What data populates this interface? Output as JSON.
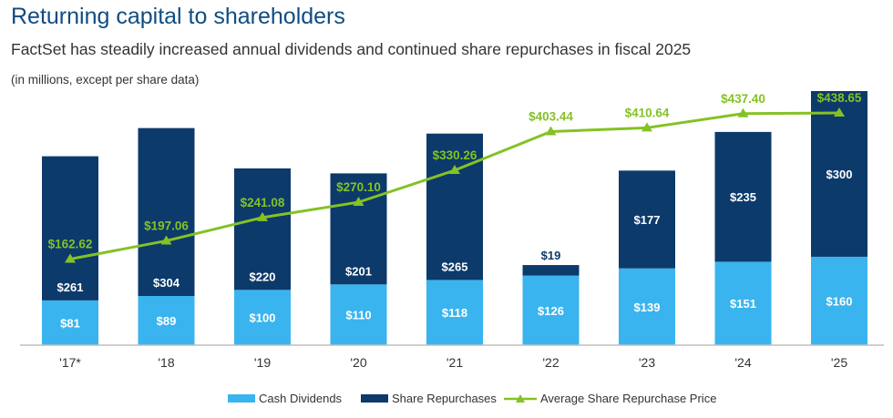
{
  "header": {
    "title": "Returning capital to shareholders",
    "subtitle": "FactSet has steadily increased annual dividends and continued share repurchases in fiscal 2025",
    "note": "(in millions, except per share data)"
  },
  "colors": {
    "dividends": "#3ab4ee",
    "repurchases": "#0c3a6b",
    "price_line": "#84c225",
    "axis": "#bfbfbf"
  },
  "chart_data": {
    "type": "bar",
    "stacked": true,
    "title": "Returning capital to shareholders",
    "categories": [
      "'17*",
      "'18",
      "'19",
      "'20",
      "'21",
      "'22",
      "'23",
      "'24",
      "'25"
    ],
    "series": [
      {
        "name": "Cash Dividends",
        "values": [
          81,
          89,
          100,
          110,
          118,
          126,
          139,
          151,
          160
        ],
        "labels": [
          "$81",
          "$89",
          "$100",
          "$110",
          "$118",
          "$126",
          "$139",
          "$151",
          "$160"
        ]
      },
      {
        "name": "Share Repurchases",
        "values": [
          261,
          304,
          220,
          201,
          265,
          19,
          177,
          235,
          300
        ],
        "labels": [
          "$261",
          "$304",
          "$220",
          "$201",
          "$265",
          "$19",
          "$177",
          "$235",
          "$300"
        ]
      }
    ],
    "line": {
      "name": "Average Share Repurchase Price",
      "values": [
        162.62,
        197.06,
        241.08,
        270.1,
        330.26,
        403.44,
        410.64,
        437.4,
        438.65
      ],
      "labels": [
        "$162.62",
        "$197.06",
        "$241.08",
        "$270.10",
        "$330.26",
        "$403.44",
        "$410.64",
        "$437.40",
        "$438.65"
      ],
      "ylim": [
        0,
        480
      ]
    },
    "ylim": [
      0,
      460
    ],
    "xlabel": "",
    "ylabel": "",
    "legend_position": "bottom-center"
  }
}
